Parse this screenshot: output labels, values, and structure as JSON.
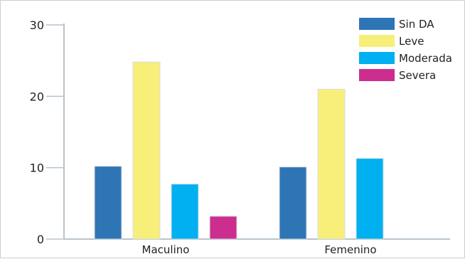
{
  "chart_data": {
    "type": "bar",
    "categories": [
      "Maculino",
      "Femenino"
    ],
    "series": [
      {
        "name": "Sin DA",
        "color": "#2E75B6",
        "values": [
          10.2,
          10.1
        ]
      },
      {
        "name": "Leve",
        "color": "#F7EF7A",
        "values": [
          24.8,
          21.0
        ]
      },
      {
        "name": "Moderada",
        "color": "#00B0F0",
        "values": [
          7.7,
          11.3
        ]
      },
      {
        "name": "Severa",
        "color": "#CC2E8F",
        "values": [
          3.2,
          null
        ]
      }
    ],
    "ylim": [
      0,
      30
    ],
    "yticks": [
      0,
      10,
      20,
      30
    ],
    "legend_position": "top-right",
    "grid": false
  }
}
